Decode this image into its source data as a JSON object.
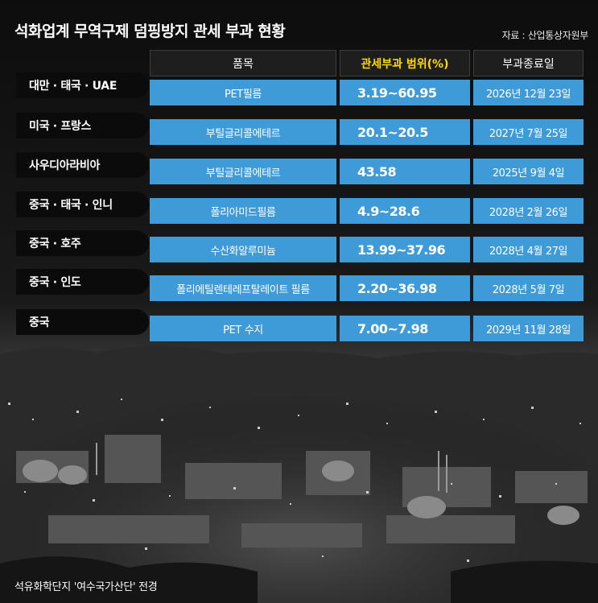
{
  "title": "석화업계 무역구제 덤핑방지 관세 부과 현황",
  "source": "자료 : 산업통상자원부",
  "table": {
    "headers": [
      "품목",
      "관세부과 범위(%)",
      "부과종료일"
    ],
    "rows": [
      {
        "country": "대만 · 태국 · UAE",
        "product": "PET필름",
        "range": "3.19~60.95",
        "end_date": "2026년 12월 23일"
      },
      {
        "country": "미국 · 프랑스",
        "product": "부틸글리콜에테르",
        "range": "20.1~20.5",
        "end_date": "2027년 7월 25일"
      },
      {
        "country": "사우디아라비아",
        "product": "부틸글리콜에테르",
        "range": "43.58",
        "end_date": "2025년 9월 4일"
      },
      {
        "country": "중국 · 태국 · 인니",
        "product": "폴리아미드필름",
        "range": "4.9~28.6",
        "end_date": "2028년 2월 26일"
      },
      {
        "country": "중국 · 호주",
        "product": "수산화알루미늄",
        "range": "13.99~37.96",
        "end_date": "2028년 4월 27일"
      },
      {
        "country": "중국 · 인도",
        "product": "폴리에틸렌테레프탈레이트 필름",
        "range": "2.20~36.98",
        "end_date": "2028년 5월 7일"
      },
      {
        "country": "중국",
        "product": "PET 수지",
        "range": "7.00~7.98",
        "end_date": "2029년 11월 28일"
      }
    ]
  },
  "caption": "석유화학단지 '여수국가산단' 전경",
  "colors": {
    "cell_blue": "#3f9ad8",
    "header_accent": "#ffd90d",
    "background": "#101010"
  }
}
